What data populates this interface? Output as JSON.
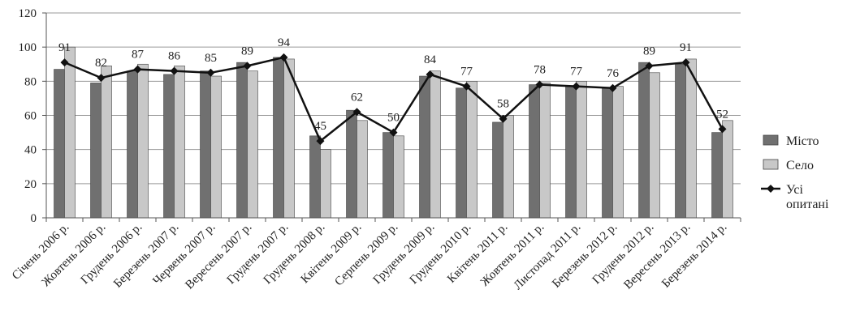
{
  "chart_data": {
    "type": "bar",
    "categories": [
      "Січень 2006 р.",
      "Жовтень 2006 р.",
      "Грудень 2006 р.",
      "Березень 2007 р.",
      "Червень 2007 р.",
      "Вересень 2007 р.",
      "Грудень 2007 р.",
      "Грудень 2008 р.",
      "Квітень 2009 р.",
      "Серпень 2009 р.",
      "Грудень 2009 р.",
      "Грудень 2010 р.",
      "Квітень 2011 р.",
      "Жовтень 2011 р.",
      "Листопад 2011 р.",
      "Березень 2012 р.",
      "Грудень 2012 р.",
      "Вересень 2013 р.",
      "Березень 2014 р."
    ],
    "series": [
      {
        "name": "Місто",
        "kind": "bar",
        "color": "#707070",
        "values": [
          87,
          79,
          86,
          84,
          86,
          91,
          94,
          48,
          63,
          50,
          83,
          76,
          56,
          78,
          77,
          76,
          91,
          90,
          50
        ]
      },
      {
        "name": "Село",
        "kind": "bar",
        "color": "#c8c8c8",
        "values": [
          100,
          89,
          90,
          89,
          83,
          86,
          93,
          40,
          57,
          48,
          86,
          80,
          60,
          79,
          80,
          77,
          85,
          93,
          57
        ]
      },
      {
        "name": "Усі опитані",
        "kind": "line",
        "color": "#111111",
        "values": [
          91,
          82,
          87,
          86,
          85,
          89,
          94,
          45,
          62,
          50,
          84,
          77,
          58,
          78,
          77,
          76,
          89,
          91,
          52
        ]
      }
    ],
    "data_labels": [
      "91",
      "82",
      "87",
      "86",
      "85",
      "89",
      "94",
      "45",
      "62",
      "50",
      "84",
      "77",
      "58",
      "78",
      "77",
      "76",
      "89",
      "91",
      "52"
    ],
    "y_ticks": [
      "0",
      "20",
      "40",
      "60",
      "80",
      "100",
      "120"
    ],
    "ylim": [
      0,
      120
    ],
    "grid": true,
    "legend_position": "right",
    "legend": [
      {
        "label_lines": [
          "Місто"
        ],
        "kind": "bar",
        "color": "#707070"
      },
      {
        "label_lines": [
          "Село"
        ],
        "kind": "bar",
        "color": "#c8c8c8"
      },
      {
        "label_lines": [
          "Усі",
          "опитані"
        ],
        "kind": "line",
        "color": "#111111"
      }
    ]
  }
}
